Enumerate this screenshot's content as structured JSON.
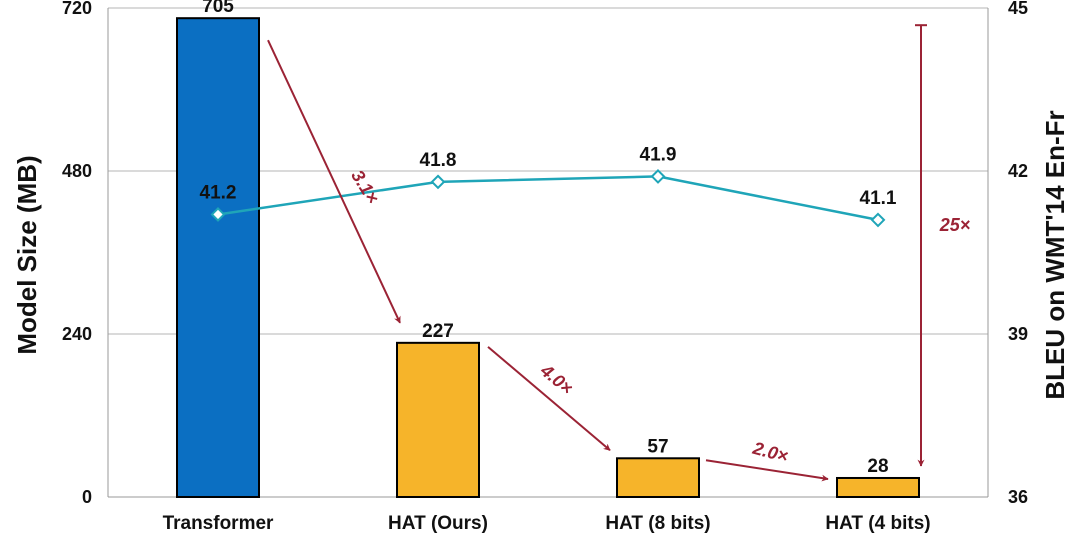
{
  "chart_data": {
    "type": "bar",
    "categories": [
      "Transformer",
      "HAT (Ours)",
      "HAT (8 bits)",
      "HAT (4 bits)"
    ],
    "series": [
      {
        "axis": "left",
        "type": "bar",
        "values": [
          705,
          227,
          57,
          28
        ],
        "colors": [
          "#0b6fc2",
          "#f6b42a",
          "#f6b42a",
          "#f6b42a"
        ]
      },
      {
        "axis": "right",
        "type": "line",
        "values": [
          41.2,
          41.8,
          41.9,
          41.1
        ],
        "color": "#1fa5b8"
      }
    ],
    "bar_labels": [
      "705",
      "227",
      "57",
      "28"
    ],
    "line_labels": [
      "41.2",
      "41.8",
      "41.9",
      "41.1"
    ],
    "ylabel": "Model Size (MB)",
    "y2label": "BLEU on WMT'14 En-Fr",
    "ylim": [
      0,
      720
    ],
    "y2lim": [
      36,
      45
    ],
    "yticks": [
      "0",
      "240",
      "480",
      "720"
    ],
    "y2ticks": [
      "36",
      "39",
      "42",
      "45"
    ],
    "grid": "horizontal",
    "annotations": [
      {
        "text": "3.1×",
        "from": "Transformer",
        "to": "HAT (Ours)"
      },
      {
        "text": "4.0×",
        "from": "HAT (Ours)",
        "to": "HAT (8 bits)"
      },
      {
        "text": "2.0×",
        "from": "HAT (8 bits)",
        "to": "HAT (4 bits)"
      },
      {
        "text": "25×",
        "from": "Transformer",
        "to": "HAT (4 bits)"
      }
    ],
    "annotation_color": "#9b2335"
  }
}
